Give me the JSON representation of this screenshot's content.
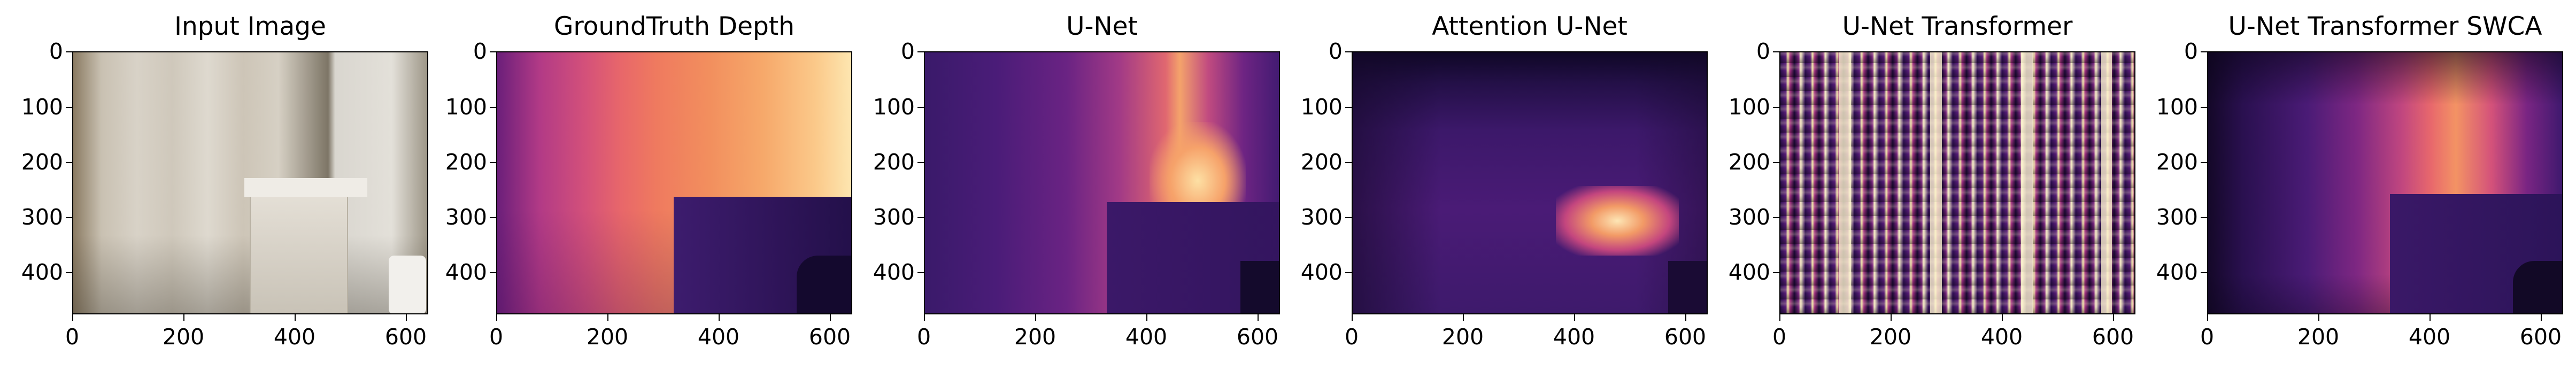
{
  "figure": {
    "panels": [
      {
        "id": "input",
        "title": "Input Image"
      },
      {
        "id": "gt",
        "title": "GroundTruth Depth"
      },
      {
        "id": "unet",
        "title": "U-Net"
      },
      {
        "id": "att",
        "title": "Attention U-Net"
      },
      {
        "id": "trans",
        "title": "U-Net Transformer"
      },
      {
        "id": "swca",
        "title": "U-Net Transformer SWCA"
      }
    ],
    "axes": {
      "y_ticks": [
        "0",
        "100",
        "200",
        "300",
        "400"
      ],
      "x_ticks": [
        "0",
        "200",
        "400",
        "600"
      ]
    }
  }
}
